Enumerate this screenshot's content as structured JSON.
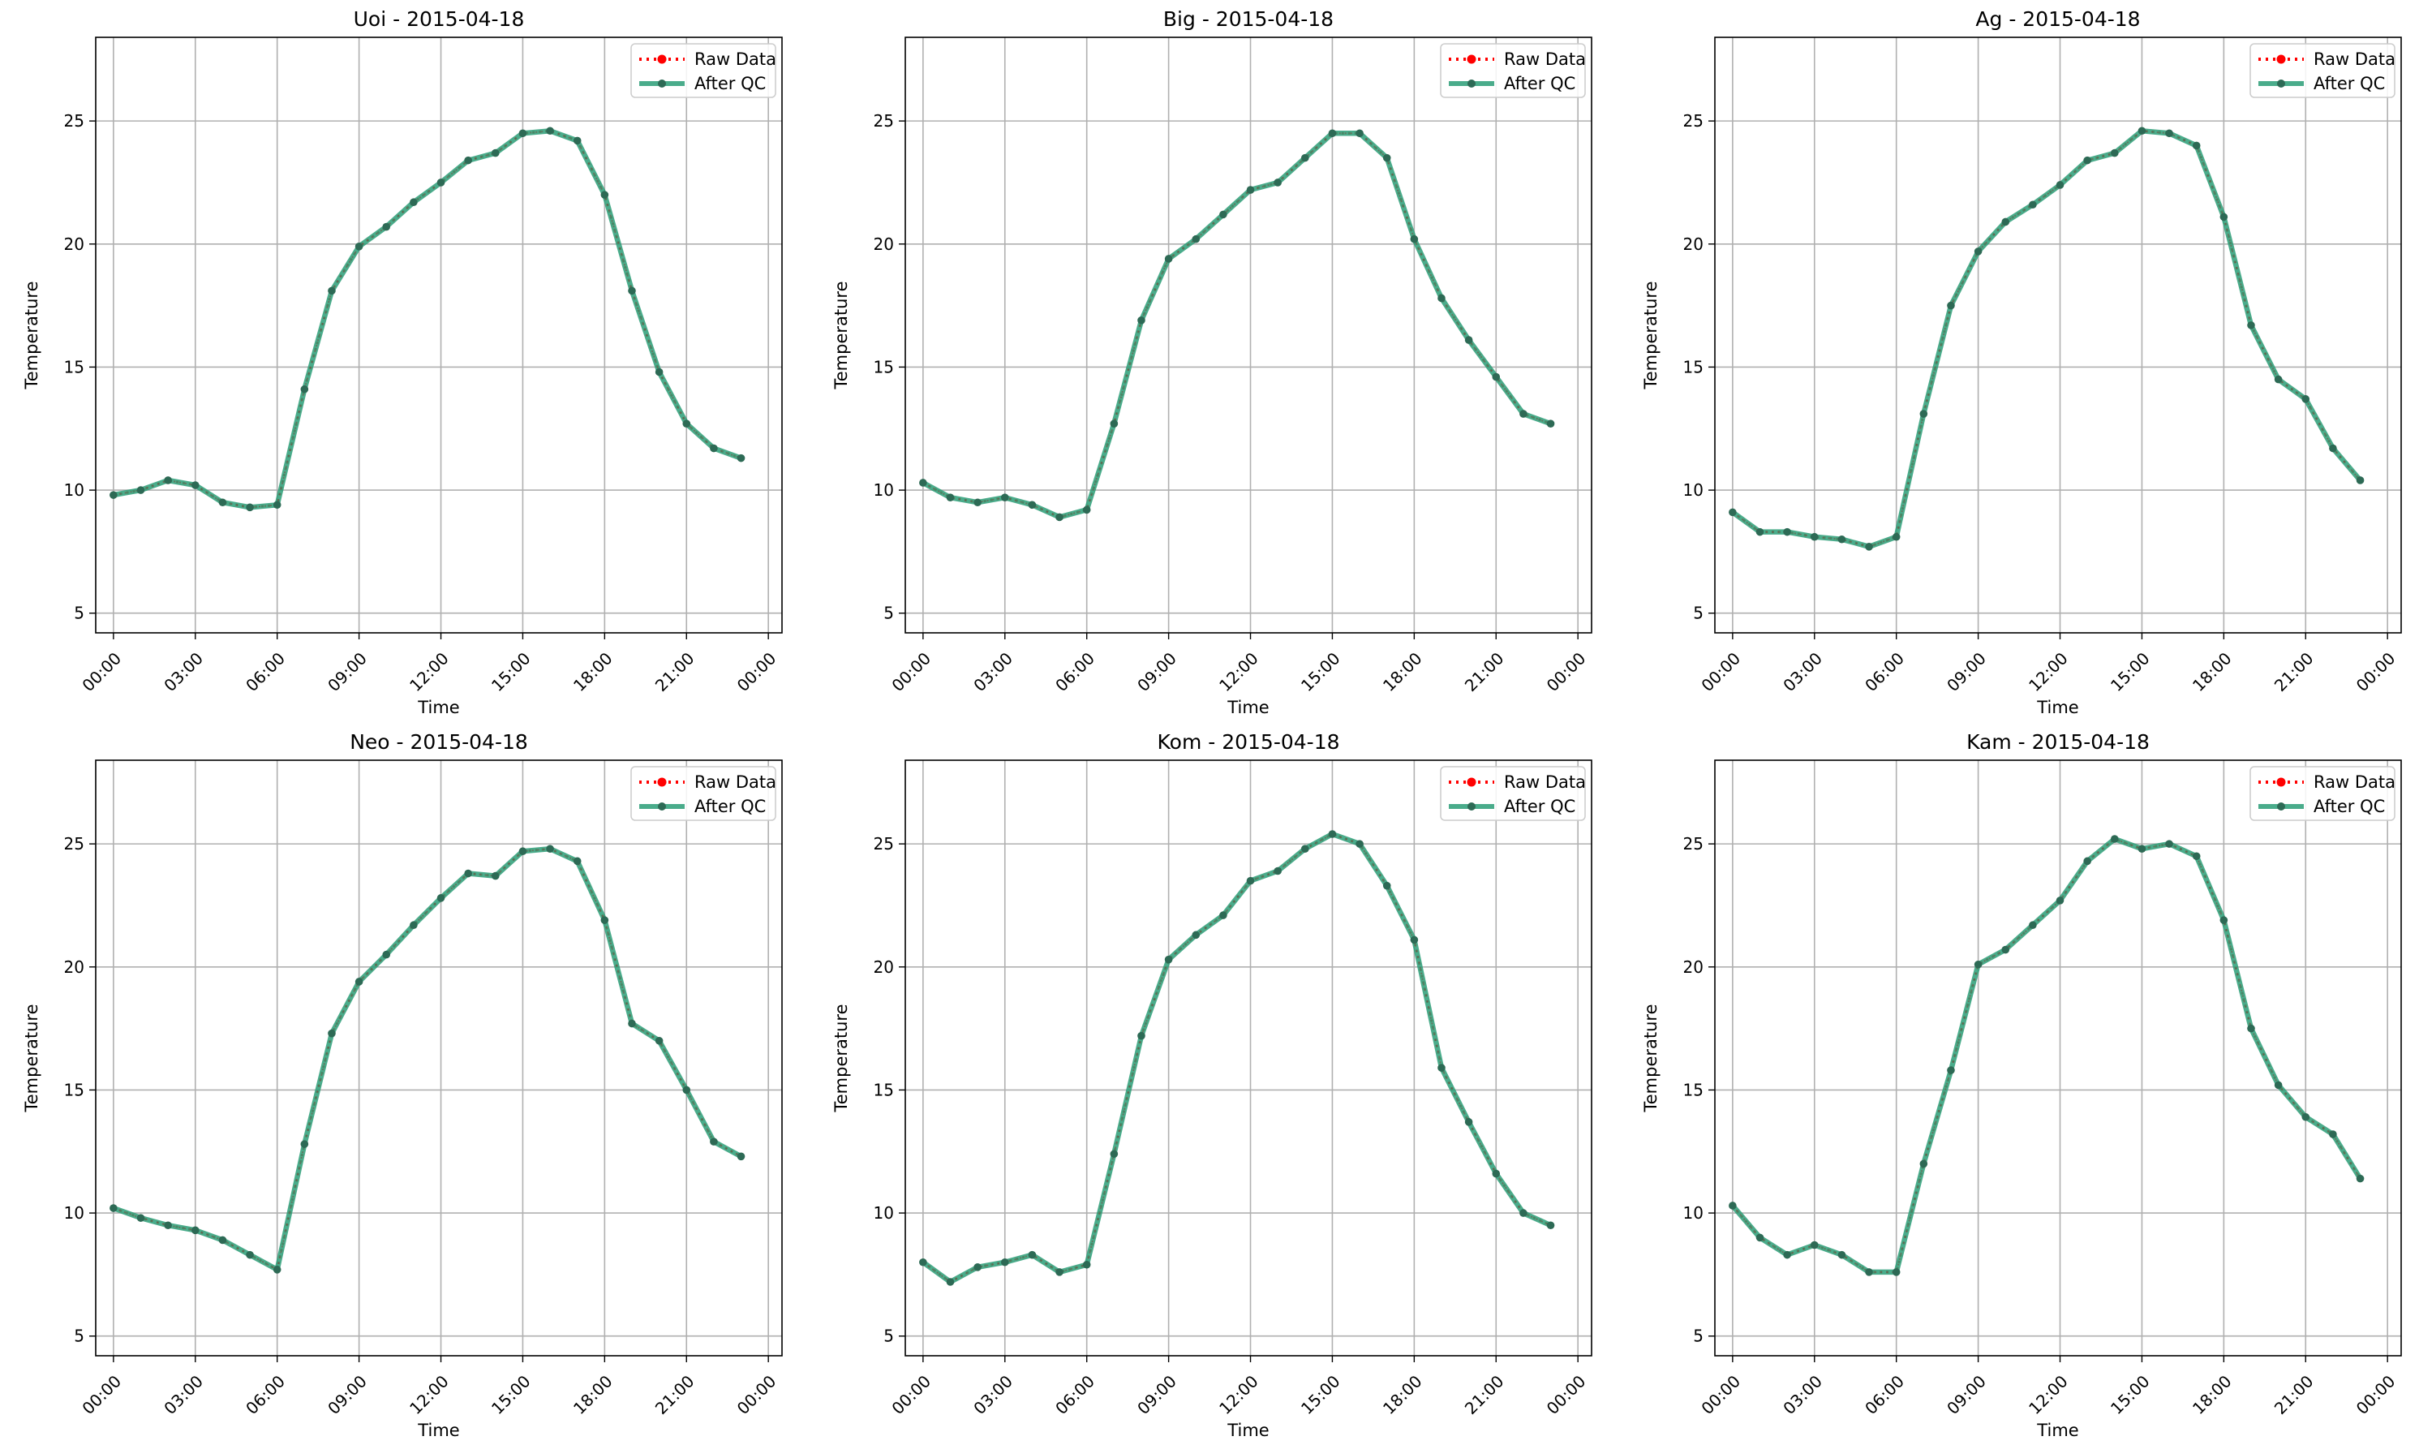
{
  "figure": {
    "legend_location": "upper right",
    "grid": true,
    "colors": {
      "raw": "#ff0000",
      "qc": "#2a9d77",
      "markers": "#2d6a55",
      "grid": "#b0b0b0",
      "frame": "#000000"
    }
  },
  "chart_data": [
    {
      "type": "line",
      "title": "Uoi - 2015-04-18",
      "xlabel": "Time",
      "ylabel": "Temperature",
      "x": [
        "00:00",
        "01:00",
        "02:00",
        "03:00",
        "04:00",
        "05:00",
        "06:00",
        "07:00",
        "08:00",
        "09:00",
        "10:00",
        "11:00",
        "12:00",
        "13:00",
        "14:00",
        "15:00",
        "16:00",
        "17:00",
        "18:00",
        "19:00",
        "20:00",
        "21:00",
        "22:00",
        "23:00"
      ],
      "xticks": [
        "00:00",
        "03:00",
        "06:00",
        "09:00",
        "12:00",
        "15:00",
        "18:00",
        "21:00",
        "00:00"
      ],
      "yticks": [
        5,
        10,
        15,
        20,
        25
      ],
      "ylim": [
        4.2,
        28.4
      ],
      "legend": [
        "Raw Data",
        "After QC"
      ],
      "series": [
        {
          "name": "Raw Data",
          "values": [
            9.8,
            10.0,
            10.4,
            10.2,
            9.5,
            9.3,
            9.4,
            14.1,
            18.1,
            19.9,
            20.7,
            21.7,
            22.5,
            23.4,
            23.7,
            24.5,
            24.6,
            24.2,
            22.0,
            18.1,
            14.8,
            12.7,
            11.7,
            11.3
          ]
        },
        {
          "name": "After QC",
          "values": [
            9.8,
            10.0,
            10.4,
            10.2,
            9.5,
            9.3,
            9.4,
            14.1,
            18.1,
            19.9,
            20.7,
            21.7,
            22.5,
            23.4,
            23.7,
            24.5,
            24.6,
            24.2,
            22.0,
            18.1,
            14.8,
            12.7,
            11.7,
            11.3
          ]
        }
      ]
    },
    {
      "type": "line",
      "title": "Big - 2015-04-18",
      "xlabel": "Time",
      "ylabel": "Temperature",
      "x": [
        "00:00",
        "01:00",
        "02:00",
        "03:00",
        "04:00",
        "05:00",
        "06:00",
        "07:00",
        "08:00",
        "09:00",
        "10:00",
        "11:00",
        "12:00",
        "13:00",
        "14:00",
        "15:00",
        "16:00",
        "17:00",
        "18:00",
        "19:00",
        "20:00",
        "21:00",
        "22:00",
        "23:00"
      ],
      "xticks": [
        "00:00",
        "03:00",
        "06:00",
        "09:00",
        "12:00",
        "15:00",
        "18:00",
        "21:00",
        "00:00"
      ],
      "yticks": [
        5,
        10,
        15,
        20,
        25
      ],
      "ylim": [
        4.2,
        28.4
      ],
      "legend": [
        "Raw Data",
        "After QC"
      ],
      "series": [
        {
          "name": "Raw Data",
          "values": [
            10.3,
            9.7,
            9.5,
            9.7,
            9.4,
            8.9,
            9.2,
            12.7,
            16.9,
            19.4,
            20.2,
            21.2,
            22.2,
            22.5,
            23.5,
            24.5,
            24.5,
            23.5,
            20.2,
            17.8,
            16.1,
            14.6,
            13.1,
            12.7
          ]
        },
        {
          "name": "After QC",
          "values": [
            10.3,
            9.7,
            9.5,
            9.7,
            9.4,
            8.9,
            9.2,
            12.7,
            16.9,
            19.4,
            20.2,
            21.2,
            22.2,
            22.5,
            23.5,
            24.5,
            24.5,
            23.5,
            20.2,
            17.8,
            16.1,
            14.6,
            13.1,
            12.7
          ]
        }
      ]
    },
    {
      "type": "line",
      "title": "Ag - 2015-04-18",
      "xlabel": "Time",
      "ylabel": "Temperature",
      "x": [
        "00:00",
        "01:00",
        "02:00",
        "03:00",
        "04:00",
        "05:00",
        "06:00",
        "07:00",
        "08:00",
        "09:00",
        "10:00",
        "11:00",
        "12:00",
        "13:00",
        "14:00",
        "15:00",
        "16:00",
        "17:00",
        "18:00",
        "19:00",
        "20:00",
        "21:00",
        "22:00",
        "23:00"
      ],
      "xticks": [
        "00:00",
        "03:00",
        "06:00",
        "09:00",
        "12:00",
        "15:00",
        "18:00",
        "21:00",
        "00:00"
      ],
      "yticks": [
        5,
        10,
        15,
        20,
        25
      ],
      "ylim": [
        4.2,
        28.4
      ],
      "legend": [
        "Raw Data",
        "After QC"
      ],
      "series": [
        {
          "name": "Raw Data",
          "values": [
            9.1,
            8.3,
            8.3,
            8.1,
            8.0,
            7.7,
            8.1,
            13.1,
            17.5,
            19.7,
            20.9,
            21.6,
            22.4,
            23.4,
            23.7,
            24.6,
            24.5,
            24.0,
            21.1,
            16.7,
            14.5,
            13.7,
            11.7,
            10.4
          ]
        },
        {
          "name": "After QC",
          "values": [
            9.1,
            8.3,
            8.3,
            8.1,
            8.0,
            7.7,
            8.1,
            13.1,
            17.5,
            19.7,
            20.9,
            21.6,
            22.4,
            23.4,
            23.7,
            24.6,
            24.5,
            24.0,
            21.1,
            16.7,
            14.5,
            13.7,
            11.7,
            10.4
          ]
        }
      ]
    },
    {
      "type": "line",
      "title": "Neo - 2015-04-18",
      "xlabel": "Time",
      "ylabel": "Temperature",
      "x": [
        "00:00",
        "01:00",
        "02:00",
        "03:00",
        "04:00",
        "05:00",
        "06:00",
        "07:00",
        "08:00",
        "09:00",
        "10:00",
        "11:00",
        "12:00",
        "13:00",
        "14:00",
        "15:00",
        "16:00",
        "17:00",
        "18:00",
        "19:00",
        "20:00",
        "21:00",
        "22:00",
        "23:00"
      ],
      "xticks": [
        "00:00",
        "03:00",
        "06:00",
        "09:00",
        "12:00",
        "15:00",
        "18:00",
        "21:00",
        "00:00"
      ],
      "yticks": [
        5,
        10,
        15,
        20,
        25
      ],
      "ylim": [
        4.2,
        28.4
      ],
      "legend": [
        "Raw Data",
        "After QC"
      ],
      "series": [
        {
          "name": "Raw Data",
          "values": [
            10.2,
            9.8,
            9.5,
            9.3,
            8.9,
            8.3,
            7.7,
            12.8,
            17.3,
            19.4,
            20.5,
            21.7,
            22.8,
            23.8,
            23.7,
            24.7,
            24.8,
            24.3,
            21.9,
            17.7,
            17.0,
            15.0,
            12.9,
            12.3
          ]
        },
        {
          "name": "After QC",
          "values": [
            10.2,
            9.8,
            9.5,
            9.3,
            8.9,
            8.3,
            7.7,
            12.8,
            17.3,
            19.4,
            20.5,
            21.7,
            22.8,
            23.8,
            23.7,
            24.7,
            24.8,
            24.3,
            21.9,
            17.7,
            17.0,
            15.0,
            12.9,
            12.3
          ]
        }
      ]
    },
    {
      "type": "line",
      "title": "Kom - 2015-04-18",
      "xlabel": "Time",
      "ylabel": "Temperature",
      "x": [
        "00:00",
        "01:00",
        "02:00",
        "03:00",
        "04:00",
        "05:00",
        "06:00",
        "07:00",
        "08:00",
        "09:00",
        "10:00",
        "11:00",
        "12:00",
        "13:00",
        "14:00",
        "15:00",
        "16:00",
        "17:00",
        "18:00",
        "19:00",
        "20:00",
        "21:00",
        "22:00",
        "23:00"
      ],
      "xticks": [
        "00:00",
        "03:00",
        "06:00",
        "09:00",
        "12:00",
        "15:00",
        "18:00",
        "21:00",
        "00:00"
      ],
      "yticks": [
        5,
        10,
        15,
        20,
        25
      ],
      "ylim": [
        4.2,
        28.4
      ],
      "legend": [
        "Raw Data",
        "After QC"
      ],
      "series": [
        {
          "name": "Raw Data",
          "values": [
            8.0,
            7.2,
            7.8,
            8.0,
            8.3,
            7.6,
            7.9,
            12.4,
            17.2,
            20.3,
            21.3,
            22.1,
            23.5,
            23.9,
            24.8,
            25.4,
            25.0,
            23.3,
            21.1,
            15.9,
            13.7,
            11.6,
            10.0,
            9.5
          ]
        },
        {
          "name": "After QC",
          "values": [
            8.0,
            7.2,
            7.8,
            8.0,
            8.3,
            7.6,
            7.9,
            12.4,
            17.2,
            20.3,
            21.3,
            22.1,
            23.5,
            23.9,
            24.8,
            25.4,
            25.0,
            23.3,
            21.1,
            15.9,
            13.7,
            11.6,
            10.0,
            9.5
          ]
        }
      ]
    },
    {
      "type": "line",
      "title": "Kam - 2015-04-18",
      "xlabel": "Time",
      "ylabel": "Temperature",
      "x": [
        "00:00",
        "01:00",
        "02:00",
        "03:00",
        "04:00",
        "05:00",
        "06:00",
        "07:00",
        "08:00",
        "09:00",
        "10:00",
        "11:00",
        "12:00",
        "13:00",
        "14:00",
        "15:00",
        "16:00",
        "17:00",
        "18:00",
        "19:00",
        "20:00",
        "21:00",
        "22:00",
        "23:00"
      ],
      "xticks": [
        "00:00",
        "03:00",
        "06:00",
        "09:00",
        "12:00",
        "15:00",
        "18:00",
        "21:00",
        "00:00"
      ],
      "yticks": [
        5,
        10,
        15,
        20,
        25
      ],
      "ylim": [
        4.2,
        28.4
      ],
      "legend": [
        "Raw Data",
        "After QC"
      ],
      "series": [
        {
          "name": "Raw Data",
          "values": [
            10.3,
            9.0,
            8.3,
            8.7,
            8.3,
            7.6,
            7.6,
            12.0,
            15.8,
            20.1,
            20.7,
            21.7,
            22.7,
            24.3,
            25.2,
            24.8,
            25.0,
            24.5,
            21.9,
            17.5,
            15.2,
            13.9,
            13.2,
            11.4
          ]
        },
        {
          "name": "After QC",
          "values": [
            10.3,
            9.0,
            8.3,
            8.7,
            8.3,
            7.6,
            7.6,
            12.0,
            15.8,
            20.1,
            20.7,
            21.7,
            22.7,
            24.3,
            25.2,
            24.8,
            25.0,
            24.5,
            21.9,
            17.5,
            15.2,
            13.9,
            13.2,
            11.4
          ]
        }
      ]
    }
  ]
}
